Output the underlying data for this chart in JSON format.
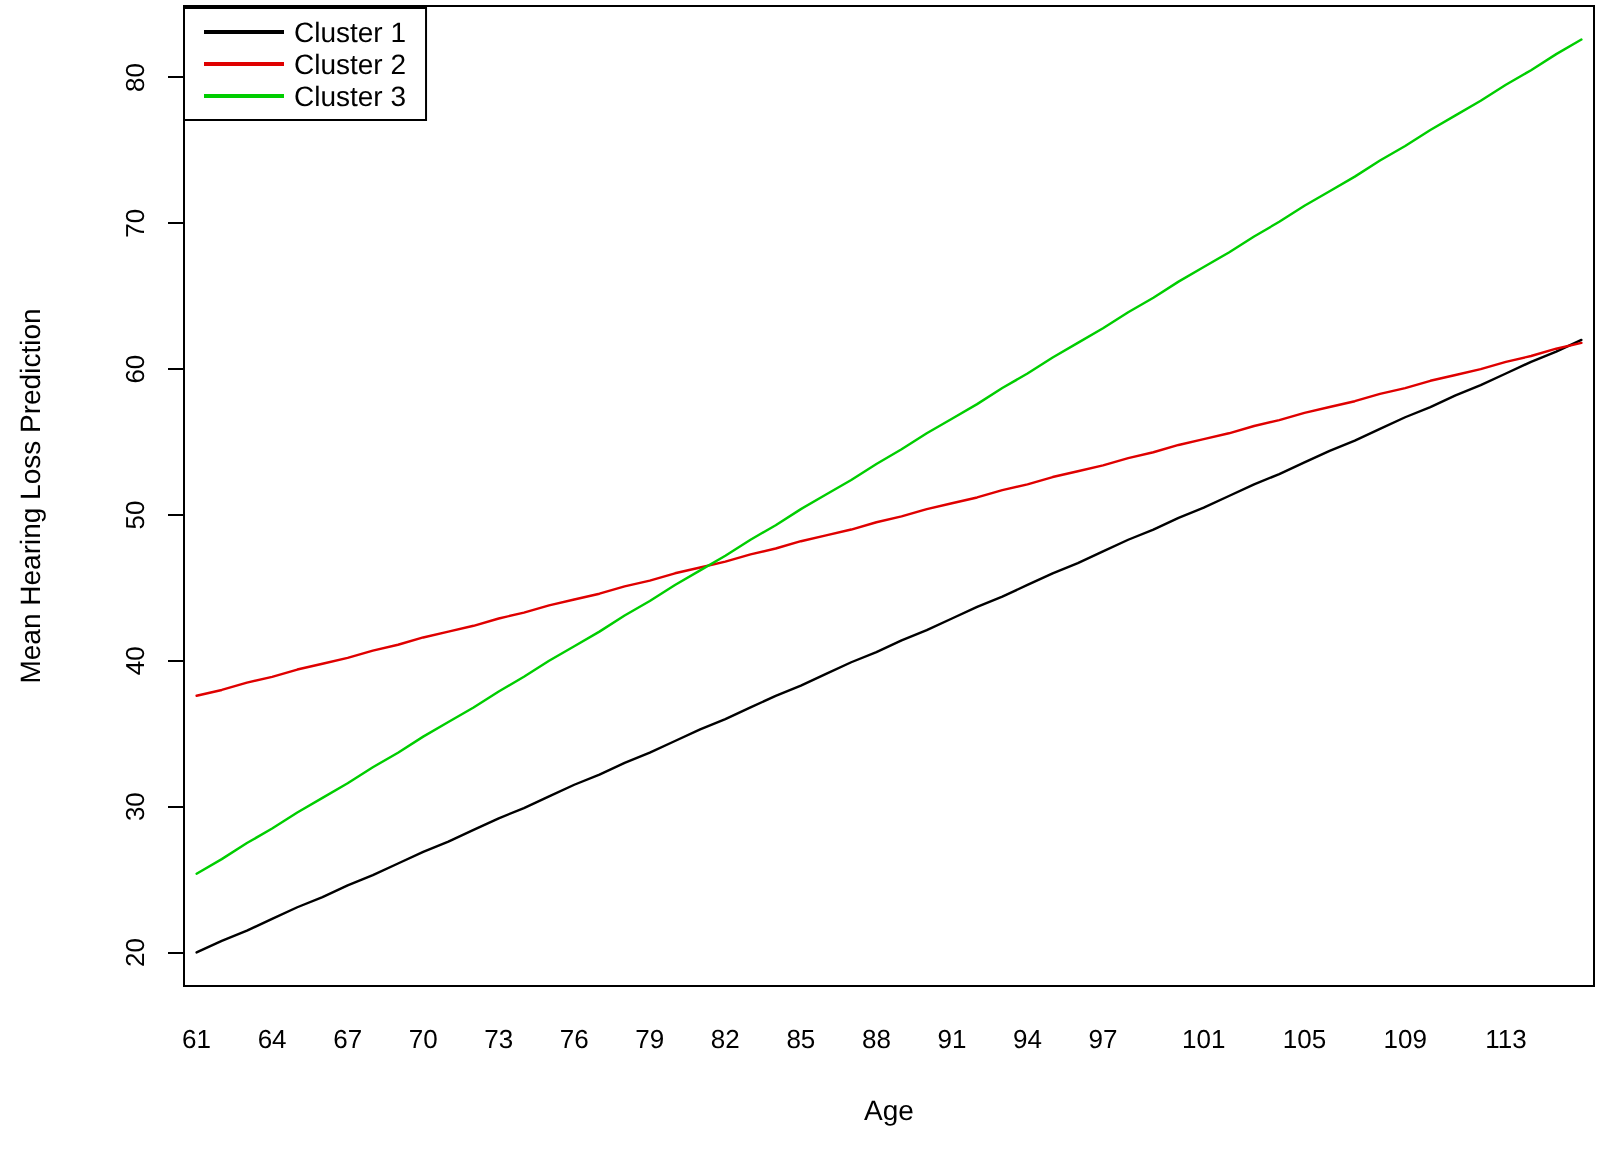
{
  "chart_data": {
    "type": "line",
    "xlabel": "Age",
    "ylabel": "Mean Hearing Loss Prediction",
    "categories": [
      "61",
      null,
      null,
      "64",
      null,
      null,
      "67",
      null,
      null,
      "70",
      null,
      null,
      "73",
      null,
      null,
      "76",
      null,
      null,
      "79",
      null,
      null,
      "82",
      null,
      null,
      "85",
      null,
      null,
      "88",
      null,
      null,
      "91",
      null,
      null,
      "94",
      null,
      null,
      "97",
      null,
      null,
      null,
      "101",
      null,
      null,
      null,
      "105",
      null,
      null,
      null,
      "109",
      null,
      null,
      null,
      "113",
      null,
      null,
      null
    ],
    "series": [
      {
        "name": "Cluster 1",
        "color": "#000000",
        "values": [
          20.0,
          20.8,
          21.5,
          22.3,
          23.1,
          23.8,
          24.6,
          25.3,
          26.1,
          26.9,
          27.6,
          28.4,
          29.2,
          29.9,
          30.7,
          31.5,
          32.2,
          33.0,
          33.7,
          34.5,
          35.3,
          36.0,
          36.8,
          37.6,
          38.3,
          39.1,
          39.9,
          40.6,
          41.4,
          42.1,
          42.9,
          43.7,
          44.4,
          45.2,
          46.0,
          46.7,
          47.5,
          48.3,
          49.0,
          49.8,
          50.5,
          51.3,
          52.1,
          52.8,
          53.6,
          54.4,
          55.1,
          55.9,
          56.7,
          57.4,
          58.2,
          58.9,
          59.7,
          60.5,
          61.2,
          62.0
        ]
      },
      {
        "name": "Cluster 2",
        "color": "#df0000",
        "values": [
          37.6,
          38.0,
          38.5,
          38.9,
          39.4,
          39.8,
          40.2,
          40.7,
          41.1,
          41.6,
          42.0,
          42.4,
          42.9,
          43.3,
          43.8,
          44.2,
          44.6,
          45.1,
          45.5,
          46.0,
          46.4,
          46.8,
          47.3,
          47.7,
          48.2,
          48.6,
          49.0,
          49.5,
          49.9,
          50.4,
          50.8,
          51.2,
          51.7,
          52.1,
          52.6,
          53.0,
          53.4,
          53.9,
          54.3,
          54.8,
          55.2,
          55.6,
          56.1,
          56.5,
          57.0,
          57.4,
          57.8,
          58.3,
          58.7,
          59.2,
          59.6,
          60.0,
          60.5,
          60.9,
          61.4,
          61.8
        ]
      },
      {
        "name": "Cluster 3",
        "color": "#00cd00",
        "values": [
          25.4,
          26.4,
          27.5,
          28.5,
          29.6,
          30.6,
          31.6,
          32.7,
          33.7,
          34.8,
          35.8,
          36.8,
          37.9,
          38.9,
          40.0,
          41.0,
          42.0,
          43.1,
          44.1,
          45.2,
          46.2,
          47.2,
          48.3,
          49.3,
          50.4,
          51.4,
          52.4,
          53.5,
          54.5,
          55.6,
          56.6,
          57.6,
          58.7,
          59.7,
          60.8,
          61.8,
          62.8,
          63.9,
          64.9,
          66.0,
          67.0,
          68.0,
          69.1,
          70.1,
          71.2,
          72.2,
          73.2,
          74.3,
          75.3,
          76.4,
          77.4,
          78.4,
          79.5,
          80.5,
          81.6,
          82.6
        ]
      }
    ],
    "ylim": [
      17.7,
      84.9
    ],
    "yticks": [
      20,
      30,
      40,
      50,
      60,
      70,
      80
    ],
    "grid": false,
    "legend": "top left",
    "marker": "none",
    "line_style": "solid"
  }
}
